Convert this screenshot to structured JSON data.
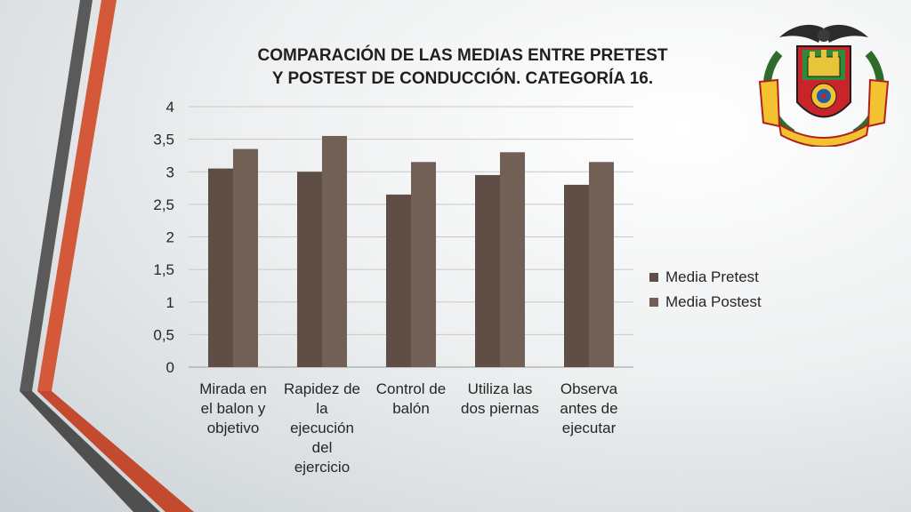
{
  "chart_data": {
    "type": "bar",
    "title": "COMPARACIÓN DE LAS MEDIAS ENTRE PRETEST Y POSTEST DE CONDUCCIÓN. CATEGORÍA 16.",
    "title_lines": [
      "COMPARACIÓN DE LAS MEDIAS ENTRE PRETEST",
      "Y POSTEST DE CONDUCCIÓN. CATEGORÍA 16."
    ],
    "categories": [
      "Mirada en el balon y objetivo",
      "Rapidez de la ejecución del ejercicio",
      "Control de balón",
      "Utiliza las dos piernas",
      "Observa antes de ejecutar"
    ],
    "category_lines": [
      [
        "Mirada en",
        "el balon y",
        "objetivo"
      ],
      [
        "Rapidez de",
        "la",
        "ejecución",
        "del",
        "ejercicio"
      ],
      [
        "Control de",
        "balón"
      ],
      [
        "Utiliza las",
        "dos piernas"
      ],
      [
        "Observa",
        "antes de",
        "ejecutar"
      ]
    ],
    "series": [
      {
        "name": "Media Pretest",
        "color": "#5e4e46",
        "values": [
          3.05,
          3.0,
          2.65,
          2.95,
          2.8
        ]
      },
      {
        "name": "Media Postest",
        "color": "#725f56",
        "values": [
          3.35,
          3.55,
          3.15,
          3.3,
          3.15
        ]
      }
    ],
    "ylim": [
      0,
      4
    ],
    "yticks": [
      "0",
      "0,5",
      "1",
      "1,5",
      "2",
      "2,5",
      "3",
      "3,5",
      "4"
    ],
    "xlabel": "",
    "ylabel": "",
    "grid": true,
    "legend_position": "right"
  },
  "colors": {
    "accent_orange": "#d4583a",
    "accent_gray": "#5a5a5a",
    "gridline": "#c8c8c8"
  },
  "emblem": {
    "icon": "institution-coat-of-arms-icon"
  }
}
